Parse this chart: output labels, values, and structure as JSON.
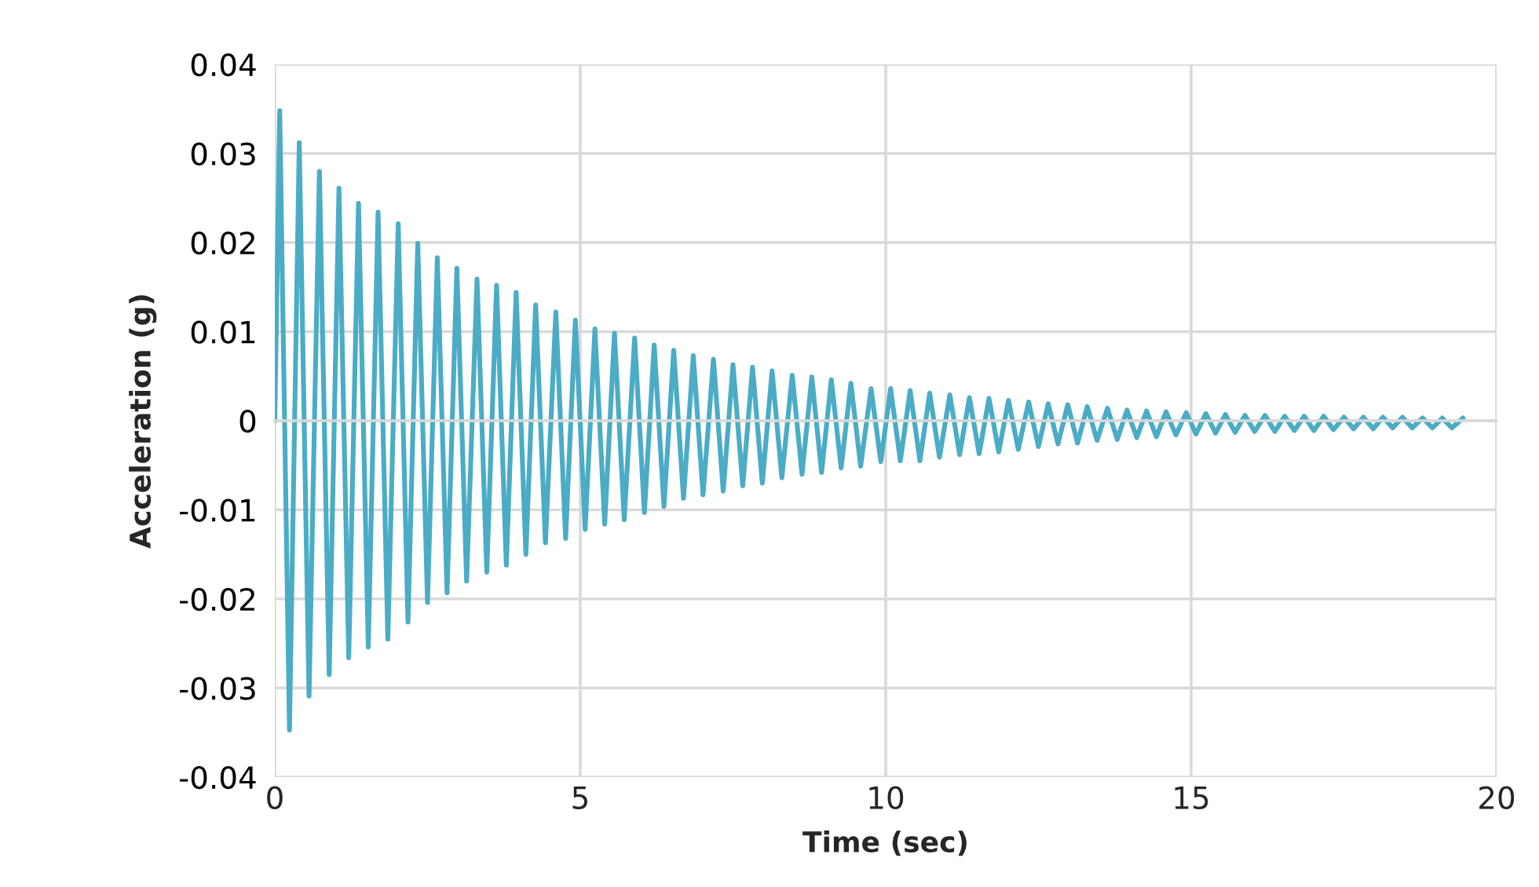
{
  "chart_data": {
    "type": "line",
    "xlabel": "Time (sec)",
    "ylabel": "Acceleration (g)",
    "xlim": [
      0,
      20
    ],
    "ylim": [
      -0.04,
      0.04
    ],
    "xticks": [
      0,
      5,
      10,
      15,
      20
    ],
    "yticks": [
      -0.04,
      -0.03,
      -0.02,
      -0.01,
      0,
      0.01,
      0.02,
      0.03,
      0.04
    ],
    "grid": true,
    "x": [
      0,
      0.08,
      0.24,
      0.4,
      0.56,
      0.73,
      0.89,
      1.05,
      1.21,
      1.37,
      1.53,
      1.69,
      1.85,
      2.02,
      2.18,
      2.34,
      2.5,
      2.66,
      2.82,
      2.98,
      3.14,
      3.31,
      3.47,
      3.63,
      3.79,
      3.95,
      4.11,
      4.27,
      4.43,
      4.6,
      4.76,
      4.92,
      5.08,
      5.24,
      5.4,
      5.56,
      5.72,
      5.89,
      6.05,
      6.21,
      6.37,
      6.53,
      6.69,
      6.85,
      7.01,
      7.18,
      7.34,
      7.5,
      7.66,
      7.82,
      7.98,
      8.14,
      8.3,
      8.47,
      8.63,
      8.79,
      8.95,
      9.11,
      9.27,
      9.43,
      9.59,
      9.76,
      9.92,
      10.08,
      10.24,
      10.4,
      10.56,
      10.72,
      10.88,
      11.05,
      11.21,
      11.37,
      11.53,
      11.69,
      11.85,
      12.01,
      12.17,
      12.34,
      12.5,
      12.66,
      12.82,
      12.98,
      13.14,
      13.3,
      13.46,
      13.63,
      13.79,
      13.95,
      14.11,
      14.27,
      14.43,
      14.59,
      14.75,
      14.92,
      15.08,
      15.24,
      15.4,
      15.56,
      15.72,
      15.88,
      16.04,
      16.21,
      16.37,
      16.53,
      16.69,
      16.85,
      17.01,
      17.17,
      17.33,
      17.5,
      17.66,
      17.82,
      17.98,
      18.14,
      18.3,
      18.46,
      18.62,
      18.79,
      18.95,
      19.11,
      19.27,
      19.45
    ],
    "series": [
      {
        "color": "#4bacc6",
        "values": [
          0,
          0.0348,
          -0.0347,
          0.0312,
          -0.0309,
          0.028,
          -0.0285,
          0.0261,
          -0.0266,
          0.0244,
          -0.0254,
          0.0234,
          -0.0245,
          0.0221,
          -0.0226,
          0.0199,
          -0.0204,
          0.0183,
          -0.0193,
          0.0171,
          -0.018,
          0.0159,
          -0.017,
          0.0152,
          -0.0162,
          0.0144,
          -0.015,
          0.013,
          -0.0137,
          0.0122,
          -0.0132,
          0.0113,
          -0.0122,
          0.0103,
          -0.0116,
          0.0098,
          -0.0111,
          0.0093,
          -0.0103,
          0.0085,
          -0.0096,
          0.0079,
          -0.0087,
          0.0073,
          -0.0083,
          0.0069,
          -0.0079,
          0.0063,
          -0.0073,
          0.006,
          -0.007,
          0.0056,
          -0.0064,
          0.0051,
          -0.006,
          0.0049,
          -0.0058,
          0.0046,
          -0.0053,
          0.0042,
          -0.0051,
          0.0036,
          -0.0046,
          0.0036,
          -0.0045,
          0.0034,
          -0.0045,
          0.0031,
          -0.0041,
          0.0029,
          -0.0038,
          0.0026,
          -0.0037,
          0.0025,
          -0.0035,
          0.0023,
          -0.0032,
          0.0021,
          -0.0029,
          0.0019,
          -0.0026,
          0.0018,
          -0.0025,
          0.0016,
          -0.0022,
          0.0014,
          -0.0021,
          0.0012,
          -0.0019,
          0.0011,
          -0.0018,
          0.001,
          -0.0016,
          0.0009,
          -0.0015,
          0.0008,
          -0.0014,
          0.0007,
          -0.0013,
          0.0006,
          -0.0012,
          0.0006,
          -0.0012,
          0.0005,
          -0.0011,
          0.0005,
          -0.0011,
          0.0005,
          -0.001,
          0.0004,
          -0.0009,
          0.0004,
          -0.0009,
          0.0004,
          -0.0008,
          0.0004,
          -0.0008,
          0.0003,
          -0.0008,
          0.0003,
          -0.0008,
          0.0003
        ]
      }
    ]
  }
}
